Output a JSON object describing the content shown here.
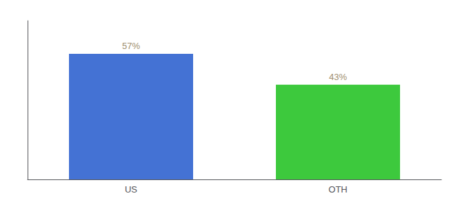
{
  "chart_data": {
    "type": "bar",
    "categories": [
      "US",
      "OTH"
    ],
    "values": [
      57,
      43
    ],
    "value_labels": [
      "57%",
      "43%"
    ],
    "colors": [
      "#4472d4",
      "#3dc93d"
    ],
    "ylim": [
      0,
      72
    ],
    "data_labels": true,
    "tick_labels": "x",
    "grid": false
  }
}
